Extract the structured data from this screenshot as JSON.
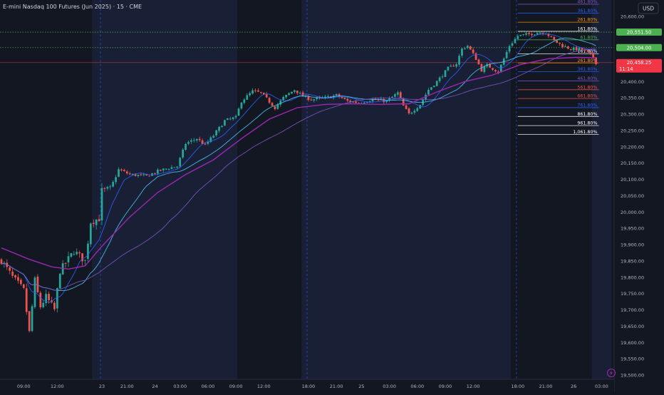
{
  "header": {
    "symbol_title": "E-mini Nasdaq 100 Futures (Jun 2025) · 15 · CME"
  },
  "currency_label": "USD",
  "icons": {
    "lightning": "lightning-icon"
  },
  "colors": {
    "background": "#131722",
    "session_light": "#192036",
    "session_dark": "#131722",
    "candle_up": "#26a69a",
    "candle_down": "#ef5350",
    "ma_fast": "#2962ff",
    "ma_mid": "#4fc3f7",
    "ma_slow": "#7e57c2",
    "ma_long": "#9c27b0",
    "axis_text": "#b2b5be",
    "green_badge": "#4caf50",
    "red_badge": "#f23645"
  },
  "price_badges": [
    {
      "name": "price-badge-high",
      "price": 20551.5,
      "label": "20,551.50",
      "color": "#4caf50"
    },
    {
      "name": "price-badge-mid",
      "price": 20504.0,
      "label": "20,504.00",
      "color": "#4caf50"
    },
    {
      "name": "price-badge-last",
      "price": 20458.25,
      "label": "20,458.25",
      "countdown": "11:14",
      "color": "#f23645"
    }
  ],
  "chart_data": {
    "type": "candlestick",
    "title": "E-mini Nasdaq 100 Futures (Jun 2025) · 15 · CME",
    "interval": "15",
    "exchange": "CME",
    "currency": "USD",
    "ylim": [
      19487,
      20650
    ],
    "yticks": [
      19500,
      19550,
      19600,
      19650,
      19700,
      19750,
      19800,
      19850,
      19900,
      19950,
      20000,
      20050,
      20100,
      20150,
      20200,
      20250,
      20300,
      20350,
      20400,
      20450,
      20500,
      20550,
      20600
    ],
    "ytick_labels": [
      "19,500.00",
      "19,550.00",
      "19,600.00",
      "19,650.00",
      "19,700.00",
      "19,750.00",
      "19,800.00",
      "19,850.00",
      "19,900.00",
      "19,950.00",
      "20,000.00",
      "20,050.00",
      "20,100.00",
      "20,150.00",
      "20,200.00",
      "20,250.00",
      "20,300.00",
      "20,350.00",
      "20,400.00",
      "20,450.00",
      "20,500.00",
      "20,550.00",
      "20,600.00"
    ],
    "xtick_labels": [
      "09:00",
      "12:00",
      "23",
      "21:00",
      "24",
      "03:00",
      "06:00",
      "09:00",
      "12:00",
      "18:00",
      "21:00",
      "25",
      "03:00",
      "06:00",
      "09:00",
      "12:00",
      "18:00",
      "21:00",
      "26",
      "03:00"
    ],
    "xtick_bar_index": [
      8,
      20,
      36,
      45,
      55,
      64,
      74,
      84,
      94,
      110,
      120,
      129,
      139,
      149,
      159,
      169,
      185,
      195,
      205,
      215
    ],
    "sessions": [
      {
        "start": 0,
        "end": 33,
        "shade": "dark"
      },
      {
        "start": 33,
        "end": 85,
        "shade": "light"
      },
      {
        "start": 85,
        "end": 108,
        "shade": "dark"
      },
      {
        "start": 108,
        "end": 183,
        "shade": "light"
      },
      {
        "start": 183,
        "end": 212,
        "shade": "dark"
      },
      {
        "start": 212,
        "end": 219,
        "shade": "light"
      }
    ],
    "session_separators": [
      36,
      110,
      185
    ],
    "keypoints": [
      [
        0,
        19852
      ],
      [
        4,
        19800
      ],
      [
        8,
        19760
      ],
      [
        10,
        19630
      ],
      [
        12,
        19790
      ],
      [
        14,
        19710
      ],
      [
        16,
        19740
      ],
      [
        19,
        19700
      ],
      [
        21,
        19820
      ],
      [
        26,
        19880
      ],
      [
        30,
        19850
      ],
      [
        32,
        19970
      ],
      [
        35,
        19980
      ],
      [
        36,
        20065
      ],
      [
        39,
        20070
      ],
      [
        42,
        20130
      ],
      [
        46,
        20115
      ],
      [
        52,
        20110
      ],
      [
        56,
        20125
      ],
      [
        60,
        20135
      ],
      [
        63,
        20140
      ],
      [
        66,
        20210
      ],
      [
        70,
        20225
      ],
      [
        73,
        20205
      ],
      [
        76,
        20235
      ],
      [
        80,
        20280
      ],
      [
        84,
        20290
      ],
      [
        86,
        20340
      ],
      [
        90,
        20370
      ],
      [
        93,
        20365
      ],
      [
        98,
        20320
      ],
      [
        101,
        20350
      ],
      [
        105,
        20375
      ],
      [
        108,
        20355
      ],
      [
        111,
        20345
      ],
      [
        116,
        20350
      ],
      [
        120,
        20358
      ],
      [
        124,
        20340
      ],
      [
        128,
        20335
      ],
      [
        133,
        20345
      ],
      [
        138,
        20340
      ],
      [
        142,
        20365
      ],
      [
        144,
        20325
      ],
      [
        146,
        20300
      ],
      [
        150,
        20330
      ],
      [
        153,
        20375
      ],
      [
        156,
        20400
      ],
      [
        160,
        20440
      ],
      [
        163,
        20455
      ],
      [
        165,
        20500
      ],
      [
        167,
        20510
      ],
      [
        170,
        20470
      ],
      [
        172,
        20435
      ],
      [
        174,
        20450
      ],
      [
        176,
        20440
      ],
      [
        178,
        20430
      ],
      [
        180,
        20470
      ],
      [
        182,
        20510
      ],
      [
        185,
        20540
      ],
      [
        189,
        20545
      ],
      [
        192,
        20550
      ],
      [
        195,
        20550
      ],
      [
        198,
        20525
      ],
      [
        201,
        20510
      ],
      [
        204,
        20500
      ],
      [
        207,
        20500
      ],
      [
        210,
        20490
      ],
      [
        212,
        20475
      ],
      [
        213,
        20458
      ]
    ],
    "moving_averages": [
      {
        "name": "ma-fast",
        "period": 9,
        "color": "#2962ff"
      },
      {
        "name": "ma-mid",
        "period": 21,
        "color": "#4fc3f7"
      },
      {
        "name": "ma-slow",
        "period": 50,
        "color": "#7e57c2"
      }
    ],
    "long_average": {
      "name": "ma-long",
      "color": "#9c27b0",
      "points": [
        [
          0,
          19890
        ],
        [
          10,
          19855
        ],
        [
          18,
          19832
        ],
        [
          24,
          19825
        ],
        [
          30,
          19835
        ],
        [
          36,
          19895
        ],
        [
          46,
          19985
        ],
        [
          56,
          20060
        ],
        [
          66,
          20115
        ],
        [
          76,
          20160
        ],
        [
          86,
          20225
        ],
        [
          96,
          20285
        ],
        [
          106,
          20320
        ],
        [
          116,
          20330
        ],
        [
          126,
          20332
        ],
        [
          136,
          20330
        ],
        [
          146,
          20332
        ],
        [
          156,
          20368
        ],
        [
          166,
          20400
        ],
        [
          176,
          20420
        ],
        [
          186,
          20452
        ],
        [
          196,
          20470
        ],
        [
          206,
          20474
        ],
        [
          213,
          20473
        ]
      ]
    },
    "fibonacci_levels": [
      {
        "label": "461.80%",
        "price": 20637,
        "color": "#7e57c2"
      },
      {
        "label": "361.80%",
        "price": 20610,
        "color": "#2962ff"
      },
      {
        "label": "261.80%",
        "price": 20582,
        "color": "#ff9800"
      },
      {
        "label": "161.80%",
        "price": 20554,
        "color": "#ffffff"
      },
      {
        "label": "61.80%",
        "price": 20528,
        "color": "#4caf50"
      },
      {
        "label": "161.80%",
        "price": 20485,
        "color": "#ffffff"
      },
      {
        "label": "261.80%",
        "price": 20457,
        "color": "#ff9800"
      },
      {
        "label": "361.80%",
        "price": 20430,
        "color": "#2962ff"
      },
      {
        "label": "461.80%",
        "price": 20402,
        "color": "#7e57c2"
      },
      {
        "label": "561.80%",
        "price": 20375,
        "color": "#ef5350"
      },
      {
        "label": "661.80%",
        "price": 20348,
        "color": "#ef5350"
      },
      {
        "label": "761.80%",
        "price": 20320,
        "color": "#2962ff"
      },
      {
        "label": "861.80%",
        "price": 20293,
        "color": "#ffffff"
      },
      {
        "label": "961.80%",
        "price": 20265,
        "color": "#ffffff"
      },
      {
        "label": "1,061.80%",
        "price": 20238,
        "color": "#ffffff"
      }
    ],
    "horizontal_lines": [
      {
        "price": 20551.5,
        "color": "#4caf50",
        "style": "dotted"
      },
      {
        "price": 20504.0,
        "color": "#4caf50",
        "style": "dotted"
      },
      {
        "price": 20458.25,
        "color": "#f23645",
        "style": "solid"
      }
    ]
  }
}
